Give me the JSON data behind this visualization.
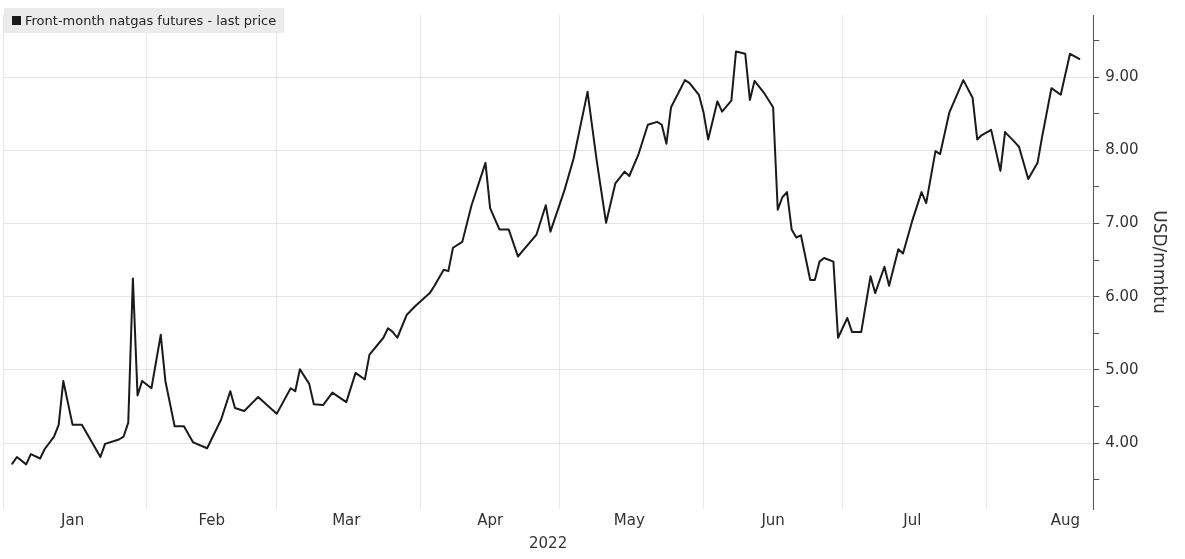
{
  "chart_data": {
    "type": "line",
    "xlabel": "2022",
    "ylabel": "USD/mmbtu",
    "legend": "top left",
    "grid": true,
    "marker": "none",
    "line_style": "solid",
    "xlim": [
      "2022-01-01",
      "2022-08-24"
    ],
    "xticks": [
      {
        "value": "2022-01-01",
        "label": null
      },
      {
        "value": "2022-01-16",
        "label": "Jan"
      },
      {
        "value": "2022-02-01",
        "label": null
      },
      {
        "value": "2022-02-15",
        "label": "Feb"
      },
      {
        "value": "2022-03-01",
        "label": null
      },
      {
        "value": "2022-03-16",
        "label": "Mar"
      },
      {
        "value": "2022-04-01",
        "label": null
      },
      {
        "value": "2022-04-16",
        "label": "Apr"
      },
      {
        "value": "2022-05-01",
        "label": null
      },
      {
        "value": "2022-05-16",
        "label": "May"
      },
      {
        "value": "2022-06-01",
        "label": null
      },
      {
        "value": "2022-06-16",
        "label": "Jun"
      },
      {
        "value": "2022-07-01",
        "label": null
      },
      {
        "value": "2022-07-16",
        "label": "Jul"
      },
      {
        "value": "2022-08-01",
        "label": null
      },
      {
        "value": "2022-08-18",
        "label": "Aug"
      }
    ],
    "ylim": [
      3.1,
      9.85
    ],
    "yticks": [
      {
        "value": 3.5,
        "label": null
      },
      {
        "value": 4,
        "label": "4.00"
      },
      {
        "value": 4.5,
        "label": null
      },
      {
        "value": 5,
        "label": "5.00"
      },
      {
        "value": 5.5,
        "label": null
      },
      {
        "value": 6,
        "label": "6.00"
      },
      {
        "value": 6.5,
        "label": null
      },
      {
        "value": 7,
        "label": "7.00"
      },
      {
        "value": 7.5,
        "label": null
      },
      {
        "value": 8,
        "label": "8.00"
      },
      {
        "value": 8.5,
        "label": null
      },
      {
        "value": 9,
        "label": "9.00"
      },
      {
        "value": 9.5,
        "label": null
      }
    ],
    "series": [
      {
        "name": "Front-month natgas futures - last price",
        "color": "#1a1a1a",
        "x": [
          "2022-01-03",
          "2022-01-04",
          "2022-01-06",
          "2022-01-07",
          "2022-01-09",
          "2022-01-10",
          "2022-01-12",
          "2022-01-13",
          "2022-01-14",
          "2022-01-16",
          "2022-01-18",
          "2022-01-22",
          "2022-01-23",
          "2022-01-26",
          "2022-01-27",
          "2022-01-28",
          "2022-01-29",
          "2022-01-30",
          "2022-01-31",
          "2022-02-02",
          "2022-02-04",
          "2022-02-05",
          "2022-02-07",
          "2022-02-09",
          "2022-02-11",
          "2022-02-14",
          "2022-02-16",
          "2022-02-17",
          "2022-02-19",
          "2022-02-20",
          "2022-02-22",
          "2022-02-25",
          "2022-03-01",
          "2022-03-04",
          "2022-03-05",
          "2022-03-06",
          "2022-03-08",
          "2022-03-09",
          "2022-03-11",
          "2022-03-13",
          "2022-03-16",
          "2022-03-18",
          "2022-03-20",
          "2022-03-21",
          "2022-03-24",
          "2022-03-25",
          "2022-03-26",
          "2022-03-27",
          "2022-03-29",
          "2022-03-31",
          "2022-04-03",
          "2022-04-04",
          "2022-04-06",
          "2022-04-07",
          "2022-04-08",
          "2022-04-10",
          "2022-04-12",
          "2022-04-15",
          "2022-04-16",
          "2022-04-18",
          "2022-04-20",
          "2022-04-22",
          "2022-04-26",
          "2022-04-28",
          "2022-04-29",
          "2022-05-02",
          "2022-05-04",
          "2022-05-07",
          "2022-05-09",
          "2022-05-11",
          "2022-05-13",
          "2022-05-15",
          "2022-05-16",
          "2022-05-18",
          "2022-05-20",
          "2022-05-22",
          "2022-05-23",
          "2022-05-24",
          "2022-05-25",
          "2022-05-28",
          "2022-05-29",
          "2022-05-31",
          "2022-06-01",
          "2022-06-02",
          "2022-06-04",
          "2022-06-05",
          "2022-06-07",
          "2022-06-08",
          "2022-06-10",
          "2022-06-11",
          "2022-06-12",
          "2022-06-14",
          "2022-06-16",
          "2022-06-17",
          "2022-06-18",
          "2022-06-19",
          "2022-06-20",
          "2022-06-21",
          "2022-06-22",
          "2022-06-24",
          "2022-06-25",
          "2022-06-26",
          "2022-06-27",
          "2022-06-29",
          "2022-06-30",
          "2022-07-02",
          "2022-07-03",
          "2022-07-05",
          "2022-07-07",
          "2022-07-08",
          "2022-07-10",
          "2022-07-11",
          "2022-07-13",
          "2022-07-14",
          "2022-07-16",
          "2022-07-18",
          "2022-07-19",
          "2022-07-21",
          "2022-07-22",
          "2022-07-24",
          "2022-07-27",
          "2022-07-29",
          "2022-07-30",
          "2022-07-31",
          "2022-08-02",
          "2022-08-04",
          "2022-08-05",
          "2022-08-07",
          "2022-08-08",
          "2022-08-10",
          "2022-08-12",
          "2022-08-13",
          "2022-08-15",
          "2022-08-17",
          "2022-08-19",
          "2022-08-21"
        ],
        "values": [
          3.72,
          3.81,
          3.71,
          3.85,
          3.79,
          3.92,
          4.09,
          4.25,
          4.85,
          4.25,
          4.25,
          3.81,
          3.99,
          4.05,
          4.09,
          4.28,
          6.25,
          4.65,
          4.85,
          4.75,
          5.48,
          4.85,
          4.23,
          4.23,
          4.01,
          3.93,
          4.19,
          4.32,
          4.71,
          4.48,
          4.44,
          4.63,
          4.4,
          4.75,
          4.71,
          5.01,
          4.81,
          4.53,
          4.52,
          4.69,
          4.56,
          4.96,
          4.87,
          5.21,
          5.44,
          5.57,
          5.52,
          5.44,
          5.75,
          5.88,
          6.05,
          6.15,
          6.37,
          6.35,
          6.67,
          6.75,
          7.25,
          7.83,
          7.21,
          6.92,
          6.92,
          6.55,
          6.85,
          7.25,
          6.89,
          7.45,
          7.89,
          8.8,
          7.85,
          7.01,
          7.55,
          7.71,
          7.65,
          7.95,
          8.35,
          8.39,
          8.35,
          8.09,
          8.59,
          8.96,
          8.92,
          8.76,
          8.52,
          8.15,
          8.67,
          8.53,
          8.68,
          9.35,
          9.32,
          8.69,
          8.95,
          8.79,
          8.59,
          7.19,
          7.36,
          7.43,
          6.92,
          6.81,
          6.84,
          6.23,
          6.23,
          6.48,
          6.53,
          6.48,
          5.44,
          5.71,
          5.52,
          5.52,
          6.28,
          6.05,
          6.41,
          6.15,
          6.65,
          6.59,
          7.04,
          7.43,
          7.28,
          7.99,
          7.95,
          8.52,
          8.96,
          8.72,
          8.15,
          8.21,
          8.28,
          7.72,
          8.25,
          8.12,
          8.05,
          7.61,
          7.83,
          8.19,
          8.85,
          8.76,
          9.32,
          9.25
        ]
      }
    ]
  }
}
